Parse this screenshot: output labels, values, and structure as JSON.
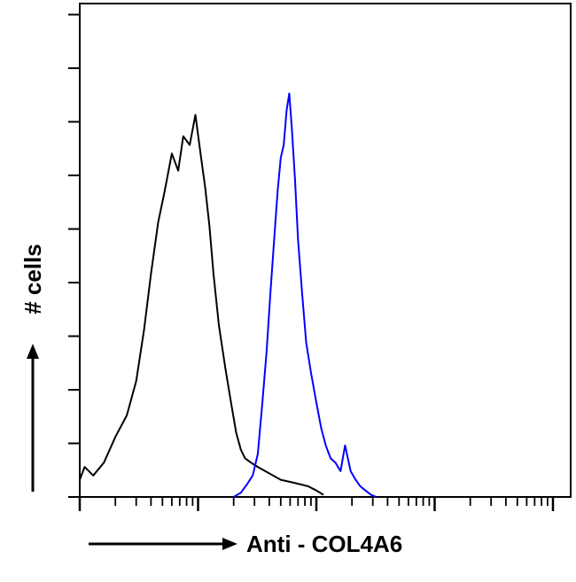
{
  "chart_data": {
    "type": "line",
    "title": "",
    "xlabel": "Anti - COL4A6",
    "ylabel": "# cells",
    "x_scale": "log",
    "tick_labels_shown": false,
    "grid": false,
    "series": [
      {
        "color": "#000000",
        "x": [
          1.0,
          1.1,
          1.3,
          1.6,
          2.0,
          2.5,
          3.0,
          3.5,
          4.0,
          4.6,
          5.2,
          6.0,
          6.8,
          7.5,
          8.5,
          9.5,
          10.5,
          11.5,
          12.5,
          13.5,
          15,
          17,
          19,
          21,
          23,
          25,
          28,
          32,
          37,
          43,
          50,
          60,
          72,
          85,
          100,
          115
        ],
        "y": [
          4,
          7,
          5,
          8,
          14,
          19,
          27,
          39,
          52,
          64,
          71,
          80,
          76,
          84,
          82,
          89,
          80,
          72,
          63,
          52,
          40,
          30,
          22,
          15,
          11,
          9,
          8,
          7,
          6,
          5,
          4,
          3.5,
          3,
          2.5,
          1.5,
          0.5
        ]
      },
      {
        "color": "#0000ff",
        "x": [
          20,
          23,
          26,
          29,
          32,
          35,
          38,
          41,
          44,
          47,
          50,
          53,
          56,
          59,
          62,
          66,
          70,
          76,
          82,
          90,
          100,
          110,
          120,
          132,
          145,
          160,
          175,
          195,
          215,
          235,
          260,
          290,
          320
        ],
        "y": [
          0,
          1,
          3,
          5,
          10,
          22,
          34,
          48,
          60,
          71,
          79,
          82,
          90,
          94,
          86,
          74,
          60,
          47,
          36,
          29,
          22,
          16,
          12,
          9,
          8,
          6,
          12,
          6,
          4,
          2.5,
          1.5,
          0.5,
          0
        ]
      }
    ]
  }
}
